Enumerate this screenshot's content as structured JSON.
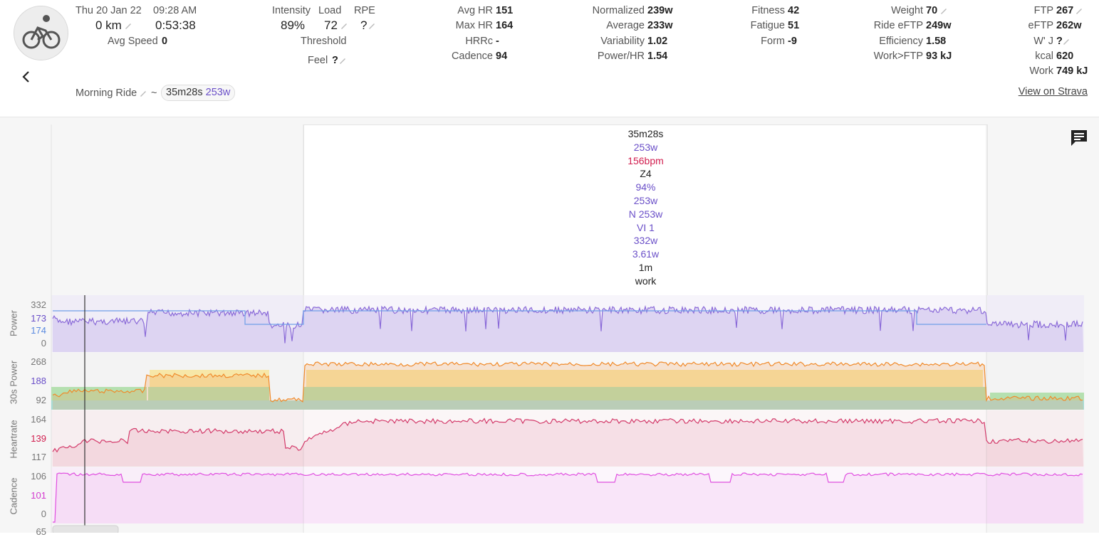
{
  "header": {
    "date": "Thu 20 Jan 22",
    "time": "09:28 AM",
    "distance": "0 km",
    "duration": "0:53:38",
    "avg_speed_label": "Avg Speed",
    "avg_speed": "0",
    "intensity_label": "Intensity",
    "intensity": "89%",
    "load_label": "Load",
    "load": "72",
    "rpe_label": "RPE",
    "rpe": "?",
    "threshold_label": "Threshold",
    "feel_label": "Feel",
    "feel": "?",
    "avg_hr_label": "Avg HR",
    "avg_hr": "151",
    "max_hr_label": "Max HR",
    "max_hr": "164",
    "hrrc_label": "HRRc",
    "hrrc": "-",
    "cadence_label": "Cadence",
    "cadence": "94",
    "normalized_label": "Normalized",
    "normalized": "239w",
    "average_label": "Average",
    "average": "233w",
    "variability_label": "Variability",
    "variability": "1.02",
    "power_hr_label": "Power/HR",
    "power_hr": "1.54",
    "fitness_label": "Fitness",
    "fitness": "42",
    "fatigue_label": "Fatigue",
    "fatigue": "51",
    "form_label": "Form",
    "form": "-9",
    "weight_label": "Weight",
    "weight": "70",
    "ride_eftp_label": "Ride eFTP",
    "ride_eftp": "249w",
    "efficiency_label": "Efficiency",
    "efficiency": "1.58",
    "work_ftp_label": "Work>FTP",
    "work_ftp": "93 kJ",
    "ftp_label": "FTP",
    "ftp": "267",
    "eftp_label": "eFTP",
    "eftp": "262w",
    "wprime_label": "W' J",
    "wprime": "?",
    "kcal_label": "kcal",
    "kcal": "620",
    "work_label": "Work",
    "work": "749 kJ",
    "activity_name": "Morning Ride",
    "tilde": "~",
    "interval_duration": "35m28s",
    "interval_power": "253w",
    "strava_link": "View on Strava"
  },
  "tooltip": {
    "duration": "35m28s",
    "power": "253w",
    "hr": "156bpm",
    "zone": "Z4",
    "pct": "94%",
    "avg": "253w",
    "np": "N 253w",
    "vi": "VI 1",
    "max": "332w",
    "wkg": "3.61w",
    "time": "1m",
    "type": "work"
  },
  "charts": {
    "power": {
      "label": "Power",
      "ticks": [
        "332",
        "173",
        "174",
        "0"
      ]
    },
    "power30": {
      "label": "30s Power",
      "ticks": [
        "268",
        "188",
        "92"
      ]
    },
    "heartrate": {
      "label": "Heartrate",
      "ticks": [
        "164",
        "139",
        "117"
      ]
    },
    "cadence": {
      "label": "Cadence",
      "ticks": [
        "106",
        "101",
        "0"
      ]
    },
    "next_tick": "65"
  },
  "colors": {
    "power": "#8a6ad8",
    "heartrate": "#d33a6a",
    "cadence": "#e04fe0",
    "zone_orange": "#f08a2a",
    "zone_yellow": "#e8c52a",
    "zone_green": "#2a9a2a",
    "accent_purple": "#6a4fc8",
    "accent_red": "#d11e4f"
  }
}
